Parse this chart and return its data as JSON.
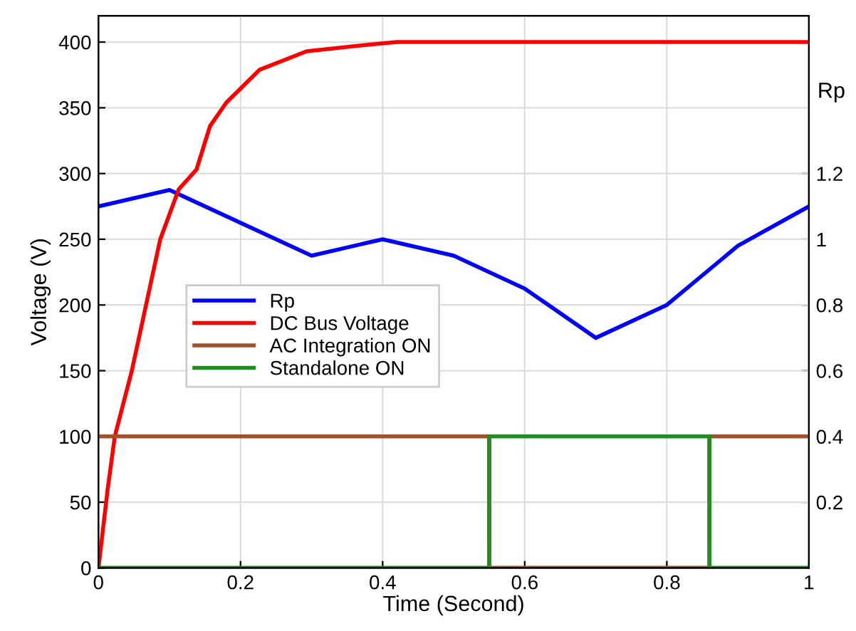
{
  "chart_data": {
    "type": "line",
    "xlabel": "Time (Second)",
    "ylabel": "Voltage (V)",
    "y2label": "Rp",
    "xlim": [
      0,
      1
    ],
    "xticks": [
      0,
      0.2,
      0.4,
      0.6,
      0.8,
      1
    ],
    "ylim": [
      0,
      420
    ],
    "yticks": [
      0,
      50,
      100,
      150,
      200,
      250,
      300,
      350,
      400
    ],
    "y2lim": [
      0,
      1.68
    ],
    "y2ticks": [
      0.2,
      0.4,
      0.6,
      0.8,
      1,
      1.2
    ],
    "grid": true,
    "legend": "left",
    "series": [
      {
        "name": "Rp",
        "color": "#0000ff",
        "axis": "y2",
        "x": [
          0,
          0.1,
          0.3,
          0.4,
          0.5,
          0.6,
          0.7,
          0.8,
          0.9,
          1
        ],
        "values": [
          1.1,
          1.15,
          0.95,
          1.0,
          0.95,
          0.85,
          0.7,
          0.8,
          0.98,
          1.1
        ]
      },
      {
        "name": "DC Bus Voltage",
        "color": "#ff0000",
        "x": [
          0,
          0.013,
          0.023,
          0.047,
          0.087,
          0.113,
          0.138,
          0.157,
          0.18,
          0.227,
          0.293,
          0.38,
          0.42,
          1
        ],
        "values": [
          0,
          60,
          100,
          150,
          250,
          288,
          303,
          336,
          354,
          379,
          393,
          398,
          400,
          400
        ]
      },
      {
        "name": "AC Integration ON",
        "color": "#a0522d",
        "type": "step",
        "x": [
          0,
          0.55,
          0.86,
          1
        ],
        "values": [
          100,
          0,
          100,
          100
        ]
      },
      {
        "name": "Standalone ON",
        "color": "#228b22",
        "type": "step",
        "x": [
          0,
          0.55,
          0.86,
          1
        ],
        "values": [
          0,
          100,
          0,
          0
        ]
      }
    ]
  }
}
